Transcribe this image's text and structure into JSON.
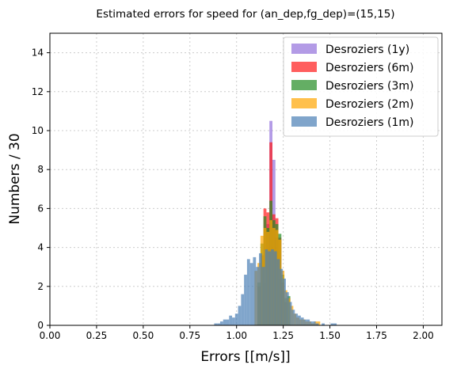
{
  "chart_data": {
    "type": "bar",
    "subtype": "overlaid-histogram",
    "title": "Estimated errors for speed for (an_dep,fg_dep)=(15,15)",
    "xlabel": "Errors [[m/s]]",
    "ylabel": "Numbers / 30",
    "xlim": [
      0.0,
      2.1
    ],
    "ylim": [
      0,
      15
    ],
    "x_ticks": [
      "0.00",
      "0.25",
      "0.50",
      "0.75",
      "1.00",
      "1.25",
      "1.50",
      "1.75",
      "2.00"
    ],
    "x_tick_values": [
      0.0,
      0.25,
      0.5,
      0.75,
      1.0,
      1.25,
      1.5,
      1.75,
      2.0
    ],
    "y_ticks": [
      "0",
      "2",
      "4",
      "6",
      "8",
      "10",
      "12",
      "14"
    ],
    "y_tick_values": [
      0,
      2,
      4,
      6,
      8,
      10,
      12,
      14
    ],
    "grid": true,
    "legend_position": "top-right",
    "bin_width": 0.016,
    "series": [
      {
        "name": "Desroziers (1y)",
        "color": "#9370db",
        "bins": [
          {
            "x": 1.144,
            "y": 2.2
          },
          {
            "x": 1.16,
            "y": 5.2
          },
          {
            "x": 1.176,
            "y": 10.5
          },
          {
            "x": 1.192,
            "y": 8.5
          },
          {
            "x": 1.208,
            "y": 4.5
          },
          {
            "x": 1.224,
            "y": 2.4
          },
          {
            "x": 1.24,
            "y": 1.8
          },
          {
            "x": 1.256,
            "y": 1.2
          },
          {
            "x": 1.272,
            "y": 1.4
          }
        ]
      },
      {
        "name": "Desroziers (6m)",
        "color": "#ff1a1a",
        "bins": [
          {
            "x": 1.112,
            "y": 2.0
          },
          {
            "x": 1.128,
            "y": 3.6
          },
          {
            "x": 1.144,
            "y": 6.0
          },
          {
            "x": 1.16,
            "y": 5.8
          },
          {
            "x": 1.176,
            "y": 9.4
          },
          {
            "x": 1.192,
            "y": 5.7
          },
          {
            "x": 1.208,
            "y": 5.5
          },
          {
            "x": 1.224,
            "y": 4.5
          },
          {
            "x": 1.24,
            "y": 2.2
          },
          {
            "x": 1.256,
            "y": 1.2
          }
        ]
      },
      {
        "name": "Desroziers (3m)",
        "color": "#228b22",
        "bins": [
          {
            "x": 1.112,
            "y": 2.2
          },
          {
            "x": 1.128,
            "y": 4.2
          },
          {
            "x": 1.144,
            "y": 5.6
          },
          {
            "x": 1.16,
            "y": 5.0
          },
          {
            "x": 1.176,
            "y": 6.4
          },
          {
            "x": 1.192,
            "y": 5.4
          },
          {
            "x": 1.208,
            "y": 5.2
          },
          {
            "x": 1.224,
            "y": 4.7
          },
          {
            "x": 1.24,
            "y": 2.6
          },
          {
            "x": 1.256,
            "y": 1.4
          },
          {
            "x": 1.272,
            "y": 1.5
          }
        ]
      },
      {
        "name": "Desroziers (2m)",
        "color": "#ffa500",
        "bins": [
          {
            "x": 1.096,
            "y": 2.8
          },
          {
            "x": 1.112,
            "y": 3.2
          },
          {
            "x": 1.128,
            "y": 4.6
          },
          {
            "x": 1.144,
            "y": 5.0
          },
          {
            "x": 1.16,
            "y": 4.8
          },
          {
            "x": 1.176,
            "y": 5.4
          },
          {
            "x": 1.192,
            "y": 5.0
          },
          {
            "x": 1.208,
            "y": 4.9
          },
          {
            "x": 1.224,
            "y": 4.4
          },
          {
            "x": 1.24,
            "y": 2.8
          },
          {
            "x": 1.256,
            "y": 1.8
          },
          {
            "x": 1.272,
            "y": 1.4
          },
          {
            "x": 1.288,
            "y": 1.0
          },
          {
            "x": 1.304,
            "y": 0.6
          },
          {
            "x": 1.32,
            "y": 0.4
          },
          {
            "x": 1.336,
            "y": 0.3
          },
          {
            "x": 1.352,
            "y": 0.3
          },
          {
            "x": 1.368,
            "y": 0.2
          },
          {
            "x": 1.384,
            "y": 0.2
          },
          {
            "x": 1.4,
            "y": 0.1
          },
          {
            "x": 1.416,
            "y": 0.2
          },
          {
            "x": 1.432,
            "y": 0.2
          }
        ]
      },
      {
        "name": "Desroziers (1m)",
        "color": "#4a7fb5",
        "bins": [
          {
            "x": 0.88,
            "y": 0.1
          },
          {
            "x": 0.896,
            "y": 0.1
          },
          {
            "x": 0.912,
            "y": 0.2
          },
          {
            "x": 0.928,
            "y": 0.3
          },
          {
            "x": 0.944,
            "y": 0.3
          },
          {
            "x": 0.96,
            "y": 0.5
          },
          {
            "x": 0.976,
            "y": 0.4
          },
          {
            "x": 0.992,
            "y": 0.6
          },
          {
            "x": 1.008,
            "y": 1.0
          },
          {
            "x": 1.024,
            "y": 1.6
          },
          {
            "x": 1.04,
            "y": 2.6
          },
          {
            "x": 1.056,
            "y": 3.4
          },
          {
            "x": 1.072,
            "y": 3.2
          },
          {
            "x": 1.088,
            "y": 3.5
          },
          {
            "x": 1.104,
            "y": 3.0
          },
          {
            "x": 1.12,
            "y": 3.7
          },
          {
            "x": 1.136,
            "y": 3.0
          },
          {
            "x": 1.152,
            "y": 3.9
          },
          {
            "x": 1.168,
            "y": 3.8
          },
          {
            "x": 1.184,
            "y": 3.9
          },
          {
            "x": 1.2,
            "y": 3.8
          },
          {
            "x": 1.216,
            "y": 3.4
          },
          {
            "x": 1.232,
            "y": 2.9
          },
          {
            "x": 1.248,
            "y": 2.4
          },
          {
            "x": 1.264,
            "y": 1.7
          },
          {
            "x": 1.28,
            "y": 1.2
          },
          {
            "x": 1.296,
            "y": 0.8
          },
          {
            "x": 1.312,
            "y": 0.6
          },
          {
            "x": 1.328,
            "y": 0.5
          },
          {
            "x": 1.344,
            "y": 0.4
          },
          {
            "x": 1.36,
            "y": 0.3
          },
          {
            "x": 1.376,
            "y": 0.3
          },
          {
            "x": 1.392,
            "y": 0.2
          },
          {
            "x": 1.408,
            "y": 0.2
          },
          {
            "x": 1.424,
            "y": 0.1
          },
          {
            "x": 1.456,
            "y": 0.1
          },
          {
            "x": 1.504,
            "y": 0.1
          },
          {
            "x": 1.52,
            "y": 0.1
          }
        ]
      }
    ]
  }
}
